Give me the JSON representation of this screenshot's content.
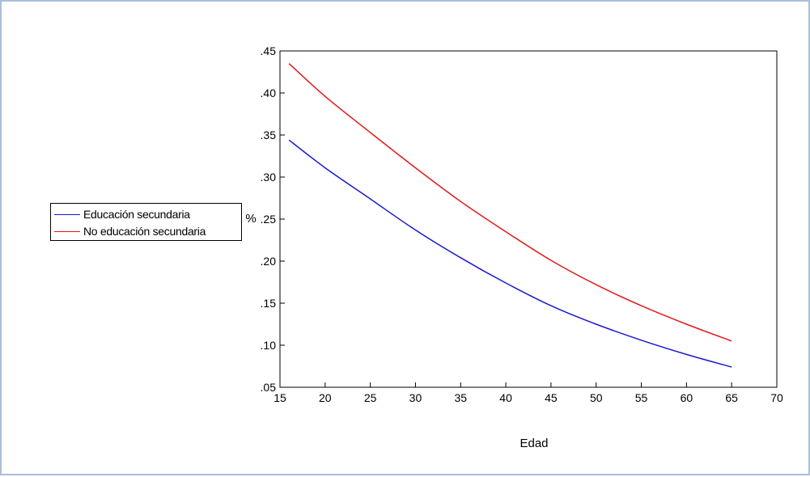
{
  "chart_data": {
    "type": "line",
    "title": "",
    "xlabel": "Edad",
    "ylabel": "%",
    "xlim": [
      15,
      70
    ],
    "ylim": [
      0.05,
      0.45
    ],
    "x_ticks": [
      "15",
      "20",
      "25",
      "30",
      "35",
      "40",
      "45",
      "50",
      "55",
      "60",
      "65",
      "70"
    ],
    "y_ticks": [
      ".05",
      ".10",
      ".15",
      ".20",
      ".25",
      ".30",
      ".35",
      ".40",
      ".45"
    ],
    "grid": false,
    "legend_position": "left-outside",
    "x": [
      16,
      20,
      25,
      30,
      35,
      40,
      45,
      50,
      55,
      60,
      65
    ],
    "series": [
      {
        "name": "Educación secundaria",
        "color": "#1a1acc",
        "values": [
          0.344,
          0.311,
          0.274,
          0.237,
          0.204,
          0.174,
          0.147,
          0.125,
          0.106,
          0.089,
          0.074
        ]
      },
      {
        "name": "No educación secundaria",
        "color": "#e01a1a",
        "values": [
          0.435,
          0.396,
          0.353,
          0.311,
          0.271,
          0.235,
          0.201,
          0.172,
          0.147,
          0.125,
          0.105
        ]
      }
    ]
  }
}
